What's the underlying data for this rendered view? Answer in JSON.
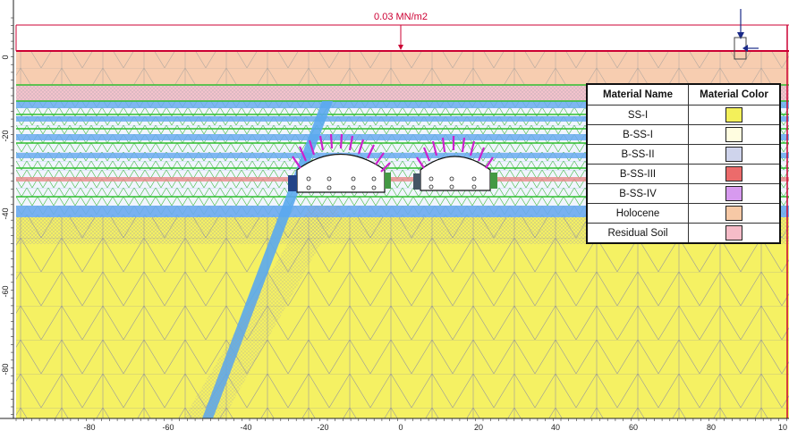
{
  "load": {
    "label": "0.03 MN/m2"
  },
  "axes": {
    "x_ticks": [
      "-80",
      "-60",
      "-40",
      "-20",
      "0",
      "20",
      "40",
      "60",
      "80",
      "10"
    ],
    "y_ticks": [
      "0",
      "-20",
      "-40",
      "-60",
      "-80"
    ]
  },
  "legend": {
    "header_name": "Material Name",
    "header_color": "Material Color",
    "rows": [
      {
        "name": "SS-I",
        "color": "#f3f05a"
      },
      {
        "name": "B-SS-I",
        "color": "#fffde0"
      },
      {
        "name": "B-SS-II",
        "color": "#cfd4ec"
      },
      {
        "name": "B-SS-III",
        "color": "#ec6b6b"
      },
      {
        "name": "B-SS-IV",
        "color": "#d79aef"
      },
      {
        "name": "Holocene",
        "color": "#f7c9a6"
      },
      {
        "name": "Residual Soil",
        "color": "#f6bcc8"
      }
    ]
  },
  "colors": {
    "ss_i": "#f5f163",
    "holocene": "#f7cdb0",
    "residual": "#f4c3cc",
    "bss_band": "#eef3ff",
    "mesh": "#8f8f8f",
    "blue_band": "#5aa0e6",
    "green_line": "#33bb33",
    "support": "#cc22cc",
    "boundary": "#cc0033"
  }
}
